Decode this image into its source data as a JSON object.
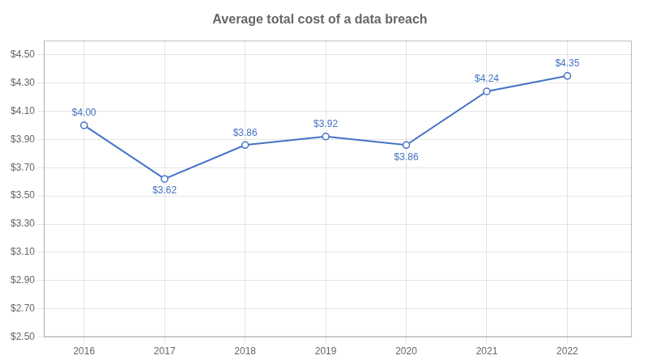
{
  "chart_data": {
    "type": "line",
    "title": "Average total cost of a data breach",
    "x": [
      2016,
      2017,
      2018,
      2019,
      2020,
      2021,
      2022
    ],
    "values": [
      4.0,
      3.62,
      3.86,
      3.92,
      3.86,
      4.24,
      4.35
    ],
    "value_labels": [
      "$4.00",
      "$3.62",
      "$3.86",
      "$3.92",
      "$3.86",
      "$4.24",
      "$4.35"
    ],
    "data_labels": true,
    "color": "#4472C4",
    "marker": "circle",
    "xlim": [
      2015.5,
      2022.8
    ],
    "xticks": [
      2016,
      2017,
      2018,
      2019,
      2020,
      2021,
      2022
    ],
    "ylim": [
      2.5,
      4.6
    ],
    "yticks": [
      {
        "value": 2.5,
        "label": "$2.50"
      },
      {
        "value": 2.7,
        "label": "$2.70"
      },
      {
        "value": 2.9,
        "label": "$2.90"
      },
      {
        "value": 3.1,
        "label": "$3.10"
      },
      {
        "value": 3.3,
        "label": "$3.30"
      },
      {
        "value": 3.5,
        "label": "$3.50"
      },
      {
        "value": 3.7,
        "label": "$3.70"
      },
      {
        "value": 3.9,
        "label": "$3.90"
      },
      {
        "value": 4.1,
        "label": "$4.10"
      },
      {
        "value": 4.3,
        "label": "$4.30"
      },
      {
        "value": 4.5,
        "label": "$4.50"
      }
    ],
    "grid": true
  }
}
